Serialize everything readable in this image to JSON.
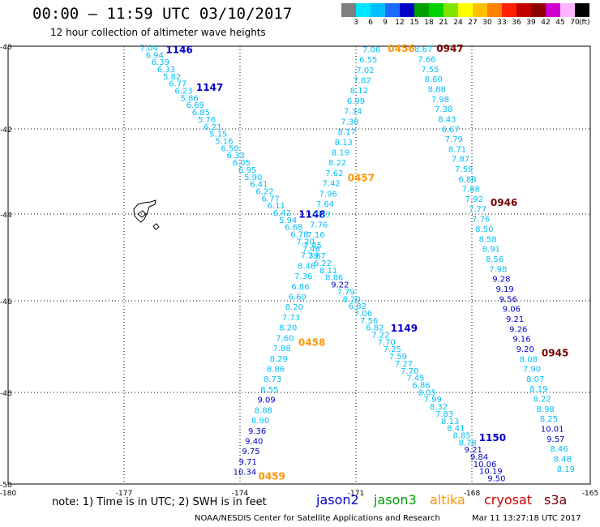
{
  "title": "00:00 – 11:59 UTC 03/10/2017",
  "subtitle": "12 hour collection of altimeter wave heights",
  "colorbar": {
    "unit": "(ft)",
    "ticks": [
      "3",
      "6",
      "9",
      "12",
      "15",
      "18",
      "21",
      "24",
      "27",
      "30",
      "33",
      "36",
      "39",
      "42",
      "45",
      "70"
    ],
    "colors": [
      "#7f7f7f",
      "#00e5ff",
      "#00bfff",
      "#1c6bff",
      "#0000c8",
      "#00a000",
      "#00d200",
      "#7fe600",
      "#ffff00",
      "#ffc000",
      "#ff8000",
      "#ff2000",
      "#c00000",
      "#8c0000",
      "#d000d0",
      "#ffb6ff",
      "#000000"
    ]
  },
  "map": {
    "lon_range": [
      -180,
      -165
    ],
    "lat_range": [
      -50,
      -40
    ],
    "lon_ticks": [
      "-180",
      "-177",
      "-174",
      "-171",
      "-168",
      "-165"
    ],
    "lat_ticks": [
      "-40",
      "-42",
      "-44",
      "-46",
      "-48",
      "-50"
    ]
  },
  "colors": {
    "cyan": "#00bfff",
    "navy": "#0000c8",
    "orange": "#ff9500",
    "darkred": "#7a0000"
  },
  "tracks": [
    {
      "sat": "jason2",
      "values": [
        "7.04",
        "6.94",
        "6.39",
        "6.33",
        "5.82",
        "6.77",
        "6.23",
        "5.86",
        "6.69",
        "6.85",
        "5.76",
        "6.21",
        "5.15",
        "5.16",
        "6.50",
        "6.33",
        "6.05",
        "6.95",
        "5.90",
        "6.41",
        "6.22",
        "6.77",
        "6.11",
        "6.42",
        "5.94",
        "6.68",
        "6.78",
        "7.20",
        "7.46",
        "7.87",
        "6.22",
        "8.11",
        "8.86",
        "9.22",
        "7.79",
        "8.20",
        "6.82",
        "7.06",
        "7.56",
        "6.82",
        "7.22",
        "7.70",
        "7.25",
        "7.59",
        "7.27",
        "7.70",
        "7.45",
        "6.86",
        "8.05",
        "7.99",
        "8.32",
        "7.83",
        "8.13",
        "8.41",
        "8.85",
        "8.78",
        "9.21",
        "9.84",
        "10.06",
        "10.19",
        "9.50"
      ],
      "times": [
        {
          "t": "1146",
          "seg": 0.014
        },
        {
          "t": "1147",
          "seg": 0.1
        },
        {
          "t": "1148",
          "seg": 0.39
        },
        {
          "t": "1149",
          "seg": 0.65
        },
        {
          "t": "1150",
          "seg": 0.9
        }
      ]
    },
    {
      "sat": "altika",
      "values": [
        "7.06",
        "6.55",
        "7.02",
        "7.82",
        "8.12",
        "6.99",
        "7.34",
        "7.30",
        "8.17",
        "8.13",
        "8.19",
        "8.22",
        "7.62",
        "7.42",
        "7.96",
        "7.64",
        "7.37",
        "7.76",
        "7.16",
        "7.45",
        "7.39",
        "8.46",
        "7.36",
        "6.86",
        "6.60",
        "8.20",
        "7.73",
        "8.20",
        "7.60",
        "7.88",
        "8.29",
        "8.86",
        "8.73",
        "8.55",
        "9.09",
        "8.88",
        "8.90",
        "9.36",
        "9.40",
        "9.75",
        "9.71",
        "10.34"
      ],
      "times": [
        {
          "t": "0456",
          "seg": 0.0
        },
        {
          "t": "0457",
          "seg": 0.31
        },
        {
          "t": "0458",
          "seg": 0.69
        },
        {
          "t": "0459",
          "seg": 0.999
        }
      ]
    },
    {
      "sat": "cryosat",
      "values": [
        "8.67",
        "7.66",
        "7.55",
        "8.60",
        "8.88",
        "7.98",
        "7.38",
        "8.43",
        "6.67",
        "7.79",
        "8.71",
        "7.87",
        "7.59",
        "6.88",
        "7.88",
        "7.92",
        "7.77",
        "7.76",
        "8.50",
        "8.58",
        "8.91",
        "8.56",
        "7.98",
        "9.28",
        "9.19",
        "9.56",
        "9.06",
        "9.21",
        "9.26",
        "9.16",
        "9.20",
        "8.08",
        "7.90",
        "8.07",
        "8.19",
        "8.22",
        "8.98",
        "8.25",
        "10.01",
        "9.57",
        "8.46",
        "8.48",
        "8.19"
      ],
      "times": [
        {
          "t": "0947",
          "seg": 0.0
        },
        {
          "t": "0946",
          "seg": 0.37
        },
        {
          "t": "0945",
          "seg": 0.72
        }
      ]
    }
  ],
  "note": "note:  1) Time is in UTC;  2) SWH is in feet",
  "legend": [
    {
      "name": "jason2",
      "color": "#0000c8"
    },
    {
      "name": "jason3",
      "color": "#00a000"
    },
    {
      "name": "altika",
      "color": "#ff9500"
    },
    {
      "name": "cryosat",
      "color": "#d00000"
    },
    {
      "name": "s3a",
      "color": "#7a0000"
    }
  ],
  "credit": "NOAA/NESDIS Center for Satellite Applications and Research",
  "stamp": "Mar 11 13:27:18 UTC 2017"
}
